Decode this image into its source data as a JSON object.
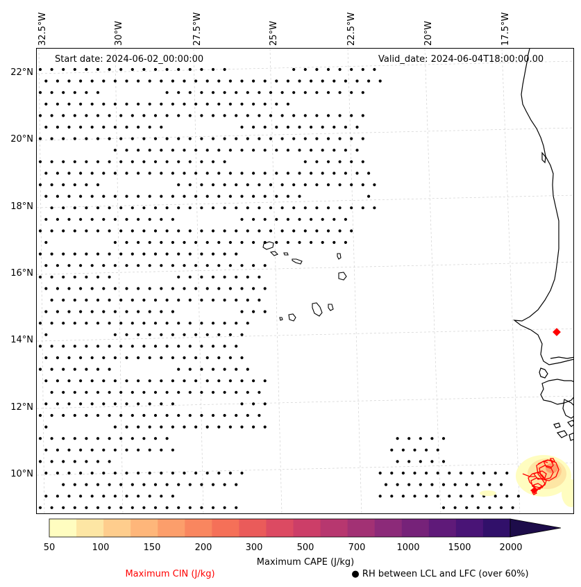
{
  "map": {
    "start_date": "Start date: 2024-06-02_00:00:00",
    "valid_date": "Valid_date: 2024-06-04T18:00:00.00",
    "lon_labels": [
      "32.5°W",
      "30°W",
      "27.5°W",
      "25°W",
      "22.5°W",
      "20°W",
      "17.5°W"
    ],
    "lat_labels": [
      "22°N",
      "20°N",
      "18°N",
      "16°N",
      "14°N",
      "12°N",
      "10°N"
    ],
    "coastline_color": "#000000",
    "cin_contour_color": "#ff0000",
    "rh_dot_color": "#000000",
    "gridline_color": "#cccccc"
  },
  "colorbar": {
    "label": "Maximum CAPE (J/kg)",
    "tick_labels": [
      "50",
      "100",
      "150",
      "200",
      "300",
      "500",
      "700",
      "1000",
      "1500",
      "2000"
    ],
    "colors": [
      "#fffdc0",
      "#fde6a4",
      "#fecd8d",
      "#feb67a",
      "#fc9e6b",
      "#f9865f",
      "#f57058",
      "#ea5b5a",
      "#dc4a62",
      "#cc3e68",
      "#b7376f",
      "#a23174",
      "#8c2a79",
      "#762279",
      "#5f1a79",
      "#491476",
      "#31106a",
      "#1d0c4a"
    ]
  },
  "legend": {
    "cin_label": "Maximum CIN (J/kg)",
    "rh_label": "RH between LCL and LFC (over 60%)",
    "rh_marker": "filled-circle-icon"
  }
}
